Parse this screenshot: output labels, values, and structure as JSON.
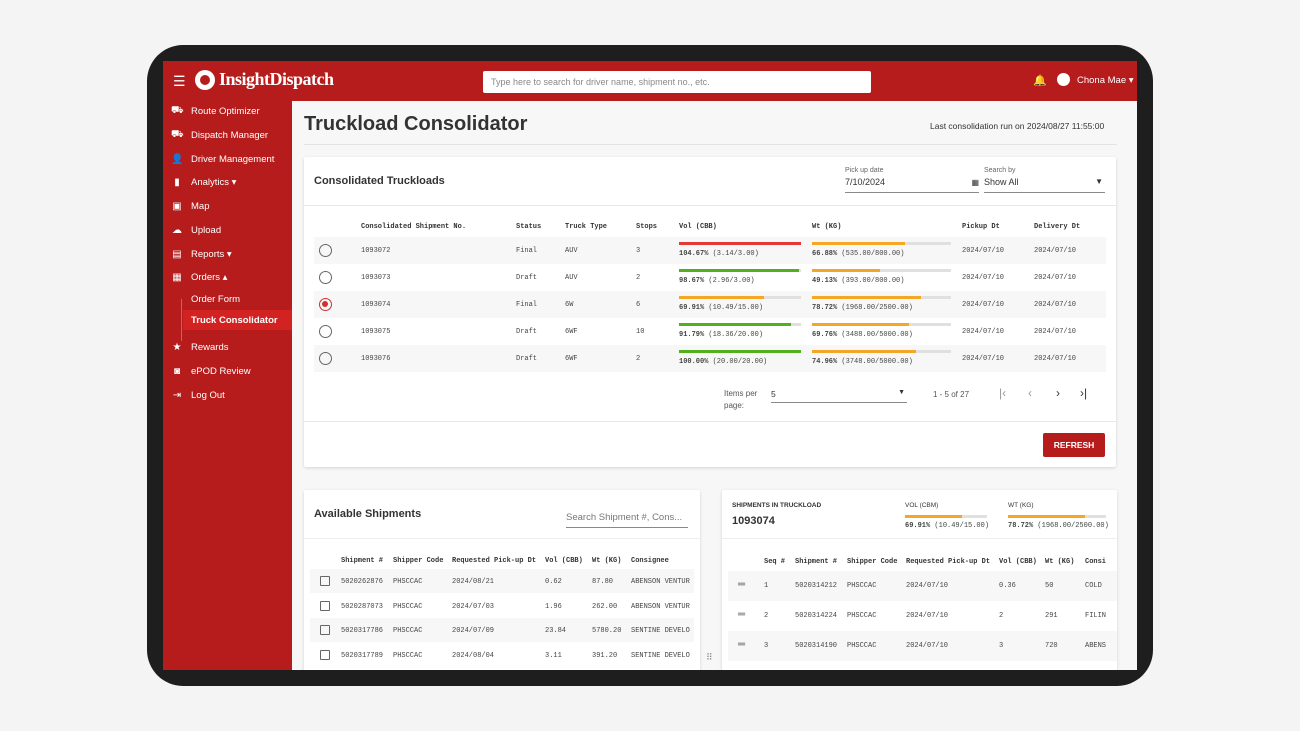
{
  "header": {
    "brand": "InsightDispatch",
    "search_placeholder": "Type here to search for driver name, shipment no., etc.",
    "user": "Chona Mae"
  },
  "sidebar": {
    "items": [
      {
        "label": "Route Optimizer",
        "icon": "truck-icon",
        "glyph": "⛟"
      },
      {
        "label": "Dispatch Manager",
        "icon": "truck-icon",
        "glyph": "⛟"
      },
      {
        "label": "Driver Management",
        "icon": "person-add-icon",
        "glyph": "👤"
      },
      {
        "label": "Analytics ▾",
        "icon": "bar-chart-icon",
        "glyph": "▮"
      },
      {
        "label": "Map",
        "icon": "map-icon",
        "glyph": "▣"
      },
      {
        "label": "Upload",
        "icon": "cloud-upload-icon",
        "glyph": "☁"
      },
      {
        "label": "Reports ▾",
        "icon": "reports-icon",
        "glyph": "▤"
      },
      {
        "label": "Orders ▴",
        "icon": "orders-icon",
        "glyph": "▦"
      },
      {
        "label": "Order Form",
        "icon": "",
        "glyph": ""
      },
      {
        "label": "Truck Consolidator",
        "icon": "",
        "glyph": ""
      },
      {
        "label": "Rewards",
        "icon": "star-icon",
        "glyph": "★"
      },
      {
        "label": "ePOD Review",
        "icon": "epod-icon",
        "glyph": "◙"
      },
      {
        "label": "Log Out",
        "icon": "logout-icon",
        "glyph": "⇥"
      }
    ]
  },
  "page": {
    "title": "Truckload Consolidator",
    "last_run": "Last consolidation run on 2024/08/27 11:55:00"
  },
  "consolidated": {
    "title": "Consolidated Truckloads",
    "pickup_label": "Pick up date",
    "pickup_value": "7/10/2024",
    "searchby_label": "Search by",
    "searchby_value": "Show All",
    "columns": [
      "Consolidated Shipment No.",
      "Status",
      "Truck Type",
      "Stops",
      "Vol (CBB)",
      "Wt (KG)",
      "Pickup Dt",
      "Delivery Dt"
    ],
    "rows": [
      {
        "no": "1093072",
        "status": "Final",
        "truck": "AUV",
        "stops": "3",
        "vol": "104.67%",
        "vol_detail": "(3.14/3.00)",
        "vol_pct": 100,
        "vol_color": "#e53935",
        "wt": "66.88%",
        "wt_detail": "(535.00/800.00)",
        "wt_pct": 66.88,
        "pickup": "2024/07/10",
        "delivery": "2024/07/10",
        "selected": false
      },
      {
        "no": "1093073",
        "status": "Draft",
        "truck": "AUV",
        "stops": "2",
        "vol": "98.67%",
        "vol_detail": "(2.96/3.00)",
        "vol_pct": 98.67,
        "vol_color": "#52b01e",
        "wt": "49.13%",
        "wt_detail": "(393.00/800.00)",
        "wt_pct": 49.13,
        "pickup": "2024/07/10",
        "delivery": "2024/07/10",
        "selected": false
      },
      {
        "no": "1093074",
        "status": "Final",
        "truck": "6W",
        "stops": "6",
        "vol": "69.91%",
        "vol_detail": "(10.49/15.00)",
        "vol_pct": 69.91,
        "vol_color": "#f5a623",
        "wt": "78.72%",
        "wt_detail": "(1968.00/2500.00)",
        "wt_pct": 78.72,
        "pickup": "2024/07/10",
        "delivery": "2024/07/10",
        "selected": true
      },
      {
        "no": "1093075",
        "status": "Draft",
        "truck": "6WF",
        "stops": "10",
        "vol": "91.79%",
        "vol_detail": "(18.36/20.00)",
        "vol_pct": 91.79,
        "vol_color": "#52b01e",
        "wt": "69.76%",
        "wt_detail": "(3488.00/5000.00)",
        "wt_pct": 69.76,
        "pickup": "2024/07/10",
        "delivery": "2024/07/10",
        "selected": false
      },
      {
        "no": "1093076",
        "status": "Draft",
        "truck": "6WF",
        "stops": "2",
        "vol": "100.00%",
        "vol_detail": "(20.00/20.00)",
        "vol_pct": 100,
        "vol_color": "#52b01e",
        "wt": "74.96%",
        "wt_detail": "(3748.00/5000.00)",
        "wt_pct": 74.96,
        "pickup": "2024/07/10",
        "delivery": "2024/07/10",
        "selected": false
      }
    ],
    "items_per_page_label": "Items per page:",
    "items_per_page": "5",
    "range": "1 - 5 of 27",
    "refresh": "REFRESH"
  },
  "available": {
    "title": "Available Shipments",
    "search_placeholder": "Search Shipment #, Cons...",
    "columns": [
      "Shipment #",
      "Shipper Code",
      "Requested Pick-up Dt",
      "Vol (CBB)",
      "Wt (KG)",
      "Consignee"
    ],
    "rows": [
      [
        "5020262876",
        "PHSCCAC",
        "2024/08/21",
        "0.62",
        "87.80",
        "ABENSON VENTUR"
      ],
      [
        "5020287073",
        "PHSCCAC",
        "2024/07/03",
        "1.96",
        "262.00",
        "ABENSON VENTUR"
      ],
      [
        "5020317786",
        "PHSCCAC",
        "2024/07/09",
        "23.84",
        "5780.20",
        "SENTINE DEVELO"
      ],
      [
        "5020317789",
        "PHSCCAC",
        "2024/08/04",
        "3.11",
        "391.20",
        "SENTINE DEVELO"
      ]
    ]
  },
  "truckload": {
    "label": "SHIPMENTS IN TRUCKLOAD",
    "number": "1093074",
    "vol_label": "VOL (CBM)",
    "vol": "69.91%",
    "vol_detail": "(10.49/15.00)",
    "vol_pct": 69.91,
    "wt_label": "WT (KG)",
    "wt": "78.72%",
    "wt_detail": "(1968.00/2500.00)",
    "wt_pct": 78.72,
    "columns": [
      "Seq #",
      "Shipment #",
      "Shipper Code",
      "Requested Pick-up Dt",
      "Vol (CBB)",
      "Wt (KG)",
      "Consi"
    ],
    "rows": [
      [
        "1",
        "5020314212",
        "PHSCCAC",
        "2024/07/10",
        "0.36",
        "50",
        "COLD"
      ],
      [
        "2",
        "5020314224",
        "PHSCCAC",
        "2024/07/10",
        "2",
        "291",
        "FILIN"
      ],
      [
        "3",
        "5020314190",
        "PHSCCAC",
        "2024/07/10",
        "3",
        "720",
        "ABENS"
      ]
    ]
  },
  "colors": {
    "brand": "#b71c1c",
    "over": "#e53935",
    "good": "#52b01e",
    "partial": "#f5a623"
  }
}
